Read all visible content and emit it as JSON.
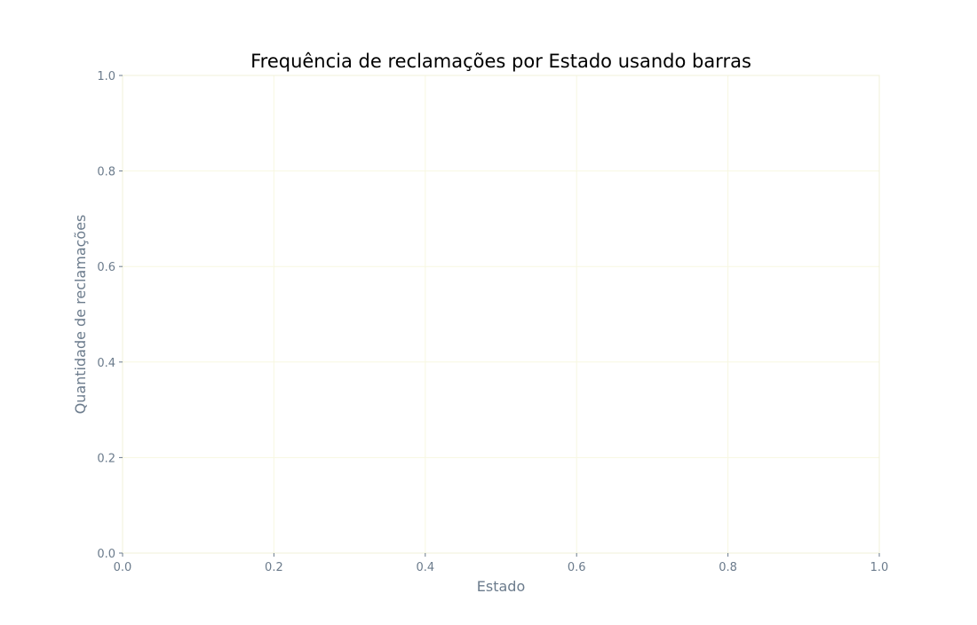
{
  "chart_data": {
    "type": "bar",
    "title": "Frequência de reclamações por Estado usando barras",
    "xlabel": "Estado",
    "ylabel": "Quantidade de reclamações",
    "categories": [],
    "values": [],
    "xlim": [
      0.0,
      1.0
    ],
    "ylim": [
      0.0,
      1.0
    ],
    "xticks": [
      "0.0",
      "0.2",
      "0.4",
      "0.6",
      "0.8",
      "1.0"
    ],
    "yticks": [
      "0.0",
      "0.2",
      "0.4",
      "0.6",
      "0.8",
      "1.0"
    ],
    "grid": true,
    "colors": {
      "grid": "#f7f7e1",
      "spine": "#f0f0d8",
      "text": "#6b7b8c",
      "title": "#000000"
    }
  }
}
